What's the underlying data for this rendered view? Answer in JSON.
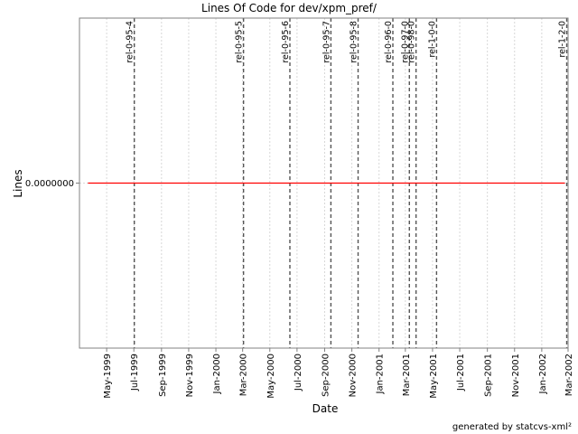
{
  "chart_data": {
    "type": "line",
    "title": "Lines Of Code for dev/xpm_pref/",
    "xlabel": "Date",
    "ylabel": "Lines",
    "footer": "generated by statcvs-xml²",
    "x_range": [
      "1999-03-01",
      "2002-03-01"
    ],
    "x_ticks": [
      {
        "label": "May-1999",
        "date": "1999-05-01"
      },
      {
        "label": "Jul-1999",
        "date": "1999-07-01"
      },
      {
        "label": "Sep-1999",
        "date": "1999-09-01"
      },
      {
        "label": "Nov-1999",
        "date": "1999-11-01"
      },
      {
        "label": "Jan-2000",
        "date": "2000-01-01"
      },
      {
        "label": "Mar-2000",
        "date": "2000-03-01"
      },
      {
        "label": "May-2000",
        "date": "2000-05-01"
      },
      {
        "label": "Jul-2000",
        "date": "2000-07-01"
      },
      {
        "label": "Sep-2000",
        "date": "2000-09-01"
      },
      {
        "label": "Nov-2000",
        "date": "2000-11-01"
      },
      {
        "label": "Jan-2001",
        "date": "2001-01-01"
      },
      {
        "label": "Mar-2001",
        "date": "2001-03-01"
      },
      {
        "label": "May-2001",
        "date": "2001-05-01"
      },
      {
        "label": "Jul-2001",
        "date": "2001-07-01"
      },
      {
        "label": "Sep-2001",
        "date": "2001-09-01"
      },
      {
        "label": "Nov-2001",
        "date": "2001-11-01"
      },
      {
        "label": "Jan-2002",
        "date": "2002-01-01"
      },
      {
        "label": "Mar-2002",
        "date": "2002-03-01"
      }
    ],
    "y_ticks": [
      {
        "label": "0.0000000",
        "value": 0
      }
    ],
    "ylim": [
      -1,
      1
    ],
    "grid": true,
    "series": [
      {
        "color": "#ff0000",
        "x": [
          "1999-03-20",
          "2002-02-22"
        ],
        "y": [
          0,
          0
        ]
      }
    ],
    "markers": [
      {
        "label": "rel-0-95-4",
        "date": "1999-07-02"
      },
      {
        "label": "rel-0-95-5",
        "date": "2000-03-03"
      },
      {
        "label": "rel-0-95-6",
        "date": "2000-06-15"
      },
      {
        "label": "rel-0-95-7",
        "date": "2000-09-15"
      },
      {
        "label": "rel-0-95-8",
        "date": "2000-11-15"
      },
      {
        "label": "rel-0-96-0",
        "date": "2001-02-01"
      },
      {
        "label": "rel-0-97-0",
        "date": "2001-03-10"
      },
      {
        "label": "rel-0-98-0",
        "date": "2001-03-25"
      },
      {
        "label": "rel-1-0-0",
        "date": "2001-05-10"
      },
      {
        "label": "rel-1-2-0",
        "date": "2002-02-26"
      }
    ]
  }
}
